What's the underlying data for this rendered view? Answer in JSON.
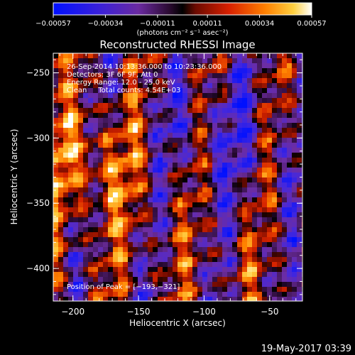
{
  "chart_data": {
    "type": "heatmap",
    "title": "Reconstructed RHESSI Image",
    "xlabel": "Heliocentric X (arcsec)",
    "ylabel": "Heliocentric Y (arcsec)",
    "xlim": [
      -215,
      -25
    ],
    "ylim": [
      -425,
      -235
    ],
    "x_ticks": [
      -200,
      -150,
      -100,
      -50
    ],
    "x_tick_labels": [
      "−200",
      "−150",
      "−100",
      "−50"
    ],
    "y_ticks": [
      -400,
      -350,
      -300,
      -250
    ],
    "y_tick_labels": [
      "−400",
      "−350",
      "−300",
      "−250"
    ],
    "colorbar": {
      "ticks": [
        -0.00057,
        -0.00034,
        -0.00011,
        0.00011,
        0.00034,
        0.00057
      ],
      "tick_labels": [
        "−0.00057",
        "−0.00034",
        "−0.00011",
        "0.00011",
        "0.00034",
        "0.00057"
      ],
      "units": "(photons cm⁻² s⁻¹ asec⁻²)",
      "min": -0.00057,
      "max": 0.00057
    },
    "annotations": [
      "26-Sep-2014 10:13:36.000 to 10:23:36.000",
      "Detectors: 3F 6F 9F, Att 0",
      "Energy Range: 12.0 - 25.0 keV",
      "Clean     Total counts: 4.54E+03"
    ],
    "peak_label": "Position of Peak = [−193,−321]",
    "peak_position": [
      -193,
      -321
    ],
    "timestamp": "19-May-2017 03:39",
    "grid": false
  }
}
